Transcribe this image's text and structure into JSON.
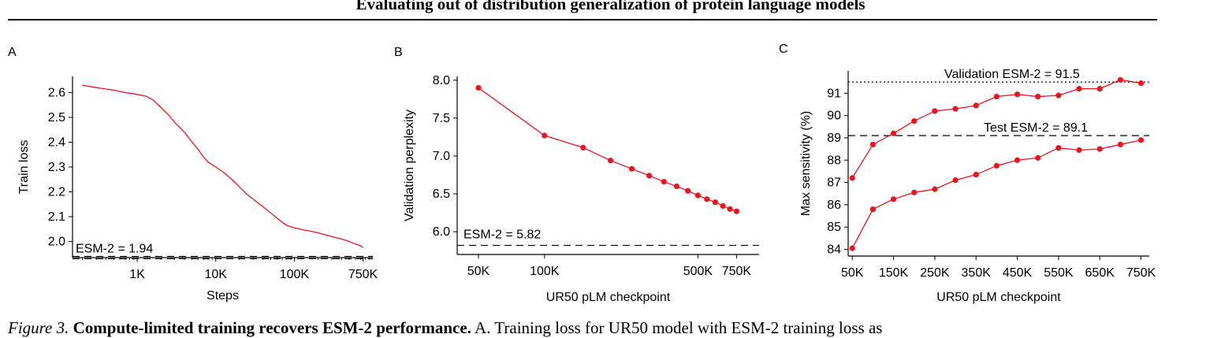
{
  "header": {
    "title": "Evaluating out of distribution generalization of protein language models"
  },
  "colors": {
    "series": "#e8141e",
    "axis": "#000000"
  },
  "caption": {
    "fig_label": "Figure 3.",
    "bold_text": "Compute-limited training recovers ESM-2 performance.",
    "text": "A. Training loss for UR50 model with ESM-2 training loss as"
  },
  "chart_data": [
    {
      "panel": "A",
      "type": "line",
      "xlabel": "Steps",
      "ylabel": "Train loss",
      "x_scale": "log",
      "xlim": [
        150,
        1000000
      ],
      "ylim": [
        1.935,
        2.665
      ],
      "x_ticks": [
        {
          "value": 1000,
          "label": "1K"
        },
        {
          "value": 10000,
          "label": "10K"
        },
        {
          "value": 100000,
          "label": "100K"
        },
        {
          "value": 750000,
          "label": "750K"
        }
      ],
      "y_ticks": [
        {
          "value": 2.0,
          "label": "2.0"
        },
        {
          "value": 2.1,
          "label": "2.1"
        },
        {
          "value": 2.2,
          "label": "2.2"
        },
        {
          "value": 2.3,
          "label": "2.3"
        },
        {
          "value": 2.4,
          "label": "2.4"
        },
        {
          "value": 2.5,
          "label": "2.5"
        },
        {
          "value": 2.6,
          "label": "2.6"
        }
      ],
      "series": [
        {
          "x": [
            200,
            300,
            500,
            700,
            900,
            1100,
            1300,
            1600,
            2000,
            2500,
            3000,
            4000,
            5000,
            6000,
            7000,
            8000,
            10000,
            13000,
            16000,
            20000,
            25000,
            30000,
            40000,
            50000,
            60000,
            70000,
            80000,
            100000,
            130000,
            160000,
            200000,
            250000,
            300000,
            400000,
            500000,
            600000,
            700000,
            750000
          ],
          "y": [
            2.63,
            2.62,
            2.61,
            2.6,
            2.595,
            2.59,
            2.585,
            2.57,
            2.54,
            2.51,
            2.48,
            2.44,
            2.4,
            2.37,
            2.34,
            2.32,
            2.3,
            2.275,
            2.25,
            2.22,
            2.19,
            2.17,
            2.14,
            2.115,
            2.095,
            2.078,
            2.065,
            2.055,
            2.047,
            2.042,
            2.035,
            2.027,
            2.02,
            2.01,
            2.0,
            1.99,
            1.983,
            1.975
          ]
        }
      ],
      "reference_lines": [
        {
          "y": 1.94,
          "style": "dashed",
          "label": "ESM-2 = 1.94"
        }
      ]
    },
    {
      "panel": "B",
      "type": "line",
      "xlabel": "UR50 pLM checkpoint",
      "ylabel": "Validation perplexity",
      "x_scale": "log",
      "xlim": [
        40000,
        950000
      ],
      "ylim": [
        5.7,
        8.05
      ],
      "x_ticks": [
        {
          "value": 50000,
          "label": "50K"
        },
        {
          "value": 100000,
          "label": "100K"
        },
        {
          "value": 500000,
          "label": "500K"
        },
        {
          "value": 750000,
          "label": "750K"
        }
      ],
      "y_ticks": [
        {
          "value": 6.0,
          "label": "6.0"
        },
        {
          "value": 6.5,
          "label": "6.5"
        },
        {
          "value": 7.0,
          "label": "7.0"
        },
        {
          "value": 7.5,
          "label": "7.5"
        },
        {
          "value": 8.0,
          "label": "8.0"
        }
      ],
      "series": [
        {
          "x": [
            50000,
            100000,
            150000,
            200000,
            250000,
            300000,
            350000,
            400000,
            450000,
            500000,
            550000,
            600000,
            650000,
            700000,
            750000
          ],
          "y": [
            7.9,
            7.27,
            7.11,
            6.94,
            6.83,
            6.74,
            6.66,
            6.6,
            6.54,
            6.48,
            6.43,
            6.39,
            6.34,
            6.3,
            6.27
          ]
        }
      ],
      "reference_lines": [
        {
          "y": 5.82,
          "style": "dashed",
          "label": "ESM-2 = 5.82"
        }
      ]
    },
    {
      "panel": "C",
      "type": "line",
      "xlabel": "UR50 pLM checkpoint",
      "ylabel": "Max sensitivity (%)",
      "x_scale": "linear",
      "xlim": [
        40000,
        770000
      ],
      "ylim": [
        83.7,
        92.0
      ],
      "x_ticks": [
        {
          "value": 50000,
          "label": "50K"
        },
        {
          "value": 150000,
          "label": "150K"
        },
        {
          "value": 250000,
          "label": "250K"
        },
        {
          "value": 350000,
          "label": "350K"
        },
        {
          "value": 450000,
          "label": "450K"
        },
        {
          "value": 550000,
          "label": "550K"
        },
        {
          "value": 650000,
          "label": "650K"
        },
        {
          "value": 750000,
          "label": "750K"
        }
      ],
      "y_ticks": [
        {
          "value": 84,
          "label": "84"
        },
        {
          "value": 85,
          "label": "85"
        },
        {
          "value": 86,
          "label": "86"
        },
        {
          "value": 87,
          "label": "87"
        },
        {
          "value": 88,
          "label": "88"
        },
        {
          "value": 89,
          "label": "89"
        },
        {
          "value": 90,
          "label": "90"
        },
        {
          "value": 91,
          "label": "91"
        }
      ],
      "series": [
        {
          "x": [
            50000,
            100000,
            150000,
            200000,
            250000,
            300000,
            350000,
            400000,
            450000,
            500000,
            550000,
            600000,
            650000,
            700000,
            750000
          ],
          "y": [
            87.2,
            88.7,
            89.2,
            89.75,
            90.2,
            90.3,
            90.45,
            90.85,
            90.95,
            90.85,
            90.9,
            91.2,
            91.2,
            91.6,
            91.45
          ]
        },
        {
          "x": [
            50000,
            100000,
            150000,
            200000,
            250000,
            300000,
            350000,
            400000,
            450000,
            500000,
            550000,
            600000,
            650000,
            700000,
            750000
          ],
          "y": [
            84.05,
            85.8,
            86.25,
            86.55,
            86.7,
            87.1,
            87.35,
            87.75,
            88.0,
            88.1,
            88.55,
            88.45,
            88.5,
            88.7,
            88.9
          ]
        }
      ],
      "reference_lines": [
        {
          "y": 91.5,
          "style": "dotted",
          "label": "Validation ESM-2 = 91.5"
        },
        {
          "y": 89.1,
          "style": "dashed",
          "label": "Test ESM-2 = 89.1"
        }
      ]
    }
  ]
}
